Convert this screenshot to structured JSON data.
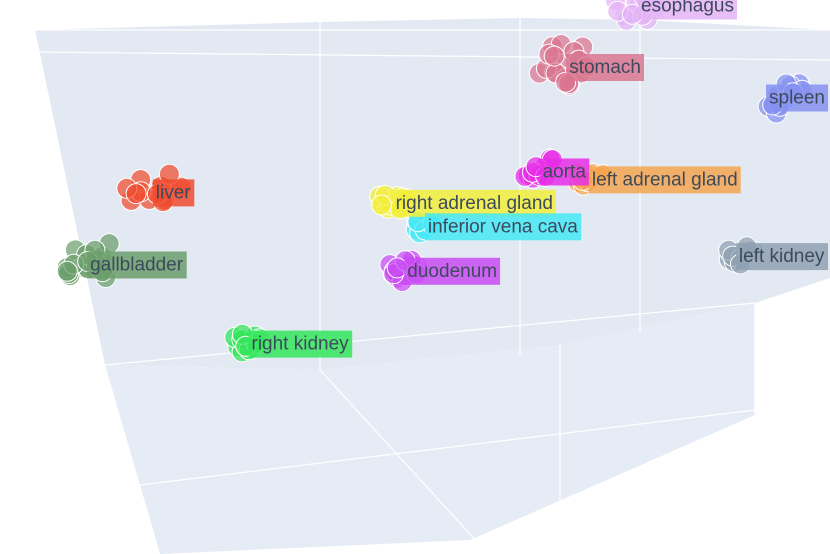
{
  "chart_data": {
    "type": "scatter",
    "projection": "3d",
    "title": "",
    "grid": true,
    "legend": "none",
    "background_color": "#e5ecf6",
    "series": [
      {
        "name": "esophagus",
        "color": "#e3b3f5",
        "x": [
          12.0,
          12.6,
          13.1,
          11.5,
          12.9,
          12.2,
          13.5,
          12.4,
          11.9,
          13.0,
          12.7,
          12.1,
          13.3,
          11.7,
          12.5,
          12.8,
          13.2,
          12.3
        ],
        "y": [
          3.2,
          3.8,
          2.9,
          3.5,
          4.1,
          2.6,
          3.3,
          3.9,
          2.8,
          3.6,
          4.4,
          3.1,
          3.7,
          3.0,
          2.7,
          3.4,
          4.0,
          3.5
        ],
        "z": [
          16.4,
          17.1,
          16.8,
          17.5,
          16.2,
          17.9,
          16.6,
          17.3,
          18.1,
          16.9,
          17.6,
          16.1,
          17.2,
          16.7,
          17.8,
          16.3,
          17.0,
          16.5
        ]
      },
      {
        "name": "stomach",
        "color": "#d9758f",
        "x": [
          8.2,
          9.1,
          9.8,
          8.7,
          10.3,
          9.4,
          8.9,
          10.0,
          9.6,
          8.4,
          10.6,
          9.2,
          8.8,
          9.9,
          9.5,
          10.1,
          8.6,
          9.3,
          9.0,
          10.4
        ],
        "y": [
          1.8,
          2.4,
          1.2,
          2.9,
          1.6,
          2.2,
          1.4,
          2.7,
          1.9,
          2.5,
          1.1,
          2.0,
          2.8,
          1.5,
          2.3,
          1.7,
          2.1,
          2.6,
          1.3,
          2.0
        ],
        "z": [
          13.6,
          14.2,
          12.9,
          13.8,
          14.6,
          13.1,
          14.9,
          13.4,
          12.6,
          14.0,
          13.3,
          15.1,
          13.7,
          14.4,
          12.8,
          13.9,
          14.7,
          13.0,
          14.3,
          13.5
        ]
      },
      {
        "name": "liver",
        "color": "#f04b2e",
        "x": [
          -10.5,
          -9.2,
          -8.8,
          -10.1,
          -9.6,
          -8.3,
          -9.9,
          -10.8,
          -9.0,
          -8.6,
          -9.4,
          -10.3
        ],
        "y": [
          -2.1,
          -1.4,
          -2.6,
          -1.8,
          -2.3,
          -1.1,
          -2.8,
          -1.6,
          -2.0,
          -2.5,
          -1.3,
          -1.9
        ],
        "z": [
          9.6,
          10.3,
          9.1,
          10.8,
          9.4,
          10.1,
          9.8,
          10.5,
          9.2,
          10.6,
          9.9,
          10.0
        ]
      },
      {
        "name": "gallbladder",
        "color": "#6b9e6b",
        "x": [
          -12.4,
          -11.6,
          -12.9,
          -11.2,
          -12.1,
          -13.3,
          -11.8,
          -12.6,
          -11.4,
          -12.2,
          -13.0,
          -11.9,
          -12.7,
          -11.5,
          -12.3,
          -13.1
        ],
        "y": [
          -4.2,
          -3.6,
          -4.8,
          -3.9,
          -4.5,
          -3.4,
          -4.1,
          -5.0,
          -3.7,
          -4.3,
          -4.6,
          -3.8,
          -4.9,
          -4.0,
          -3.5,
          -4.4
        ],
        "z": [
          5.6,
          6.2,
          5.1,
          6.8,
          5.4,
          6.0,
          5.8,
          6.5,
          4.9,
          6.3,
          5.3,
          6.6,
          5.7,
          5.2,
          6.1,
          5.5
        ]
      },
      {
        "name": "spleen",
        "color": "#8590f0",
        "x": [
          18.2,
          19.1,
          18.7,
          19.6,
          18.4,
          19.3,
          18.9,
          19.8,
          18.6,
          19.0,
          19.4,
          18.3
        ],
        "y": [
          6.5,
          7.2,
          6.1,
          6.9,
          7.5,
          6.3,
          7.0,
          6.6,
          7.3,
          6.8,
          6.4,
          7.1
        ],
        "z": [
          10.4,
          11.1,
          10.8,
          11.5,
          10.2,
          11.3,
          10.7,
          11.0,
          10.5,
          11.6,
          10.9,
          10.6
        ]
      },
      {
        "name": "aorta",
        "color": "#e62de6",
        "x": [
          7.6,
          8.3,
          7.9,
          8.6,
          7.3,
          8.1,
          8.8,
          7.7,
          8.4,
          8.0
        ],
        "y": [
          2.1,
          2.6,
          1.8,
          2.4,
          2.9,
          2.2,
          1.9,
          2.7,
          2.3,
          2.0
        ],
        "z": [
          7.8,
          8.3,
          7.5,
          8.6,
          8.0,
          7.7,
          8.4,
          8.1,
          7.6,
          8.2
        ]
      },
      {
        "name": "left adrenal gland",
        "color": "#f5a54d",
        "x": [
          9.8,
          10.4,
          10.1,
          10.7,
          9.6,
          10.3,
          10.9,
          10.0
        ],
        "y": [
          3.1,
          3.6,
          2.8,
          3.3,
          3.9,
          3.0,
          3.5,
          3.2
        ],
        "z": [
          7.1,
          7.6,
          6.8,
          7.3,
          7.9,
          7.0,
          7.4,
          7.2
        ]
      },
      {
        "name": "right adrenal gland",
        "color": "#f2ef3a",
        "x": [
          1.2,
          1.8,
          1.5,
          2.1,
          0.9,
          1.6,
          2.3,
          1.3,
          1.9,
          1.1
        ],
        "y": [
          -0.6,
          -0.1,
          -0.9,
          -0.3,
          0.2,
          -0.7,
          -0.2,
          -0.5,
          0.1,
          -0.4
        ],
        "z": [
          6.9,
          7.4,
          6.6,
          7.2,
          7.7,
          6.8,
          7.1,
          7.5,
          6.7,
          7.0
        ]
      },
      {
        "name": "inferior vena cava",
        "color": "#45e8f5",
        "x": [
          2.6,
          3.1,
          2.8,
          3.4,
          2.5,
          3.0,
          3.3,
          2.7
        ],
        "y": [
          0.4,
          0.9,
          0.2,
          0.7,
          1.1,
          0.5,
          0.8,
          0.3
        ],
        "z": [
          5.4,
          5.9,
          5.1,
          5.7,
          6.1,
          5.3,
          5.6,
          5.8
        ]
      },
      {
        "name": "duodenum",
        "color": "#c94bf2",
        "x": [
          1.8,
          2.5,
          2.1,
          2.9,
          1.5,
          2.3,
          2.7,
          1.9,
          2.6,
          2.2,
          1.7,
          2.4,
          2.8,
          2.0
        ],
        "y": [
          -1.2,
          -0.6,
          -1.5,
          -0.9,
          -0.4,
          -1.1,
          -0.7,
          -1.4,
          -0.8,
          -1.0,
          -0.5,
          -1.3,
          -0.6,
          -1.2
        ],
        "z": [
          2.6,
          3.1,
          2.2,
          2.9,
          3.4,
          2.4,
          3.0,
          2.7,
          3.3,
          2.1,
          2.8,
          3.2,
          2.5,
          2.9
        ]
      },
      {
        "name": "left kidney",
        "color": "#8fa1b3",
        "x": [
          16.1,
          16.8,
          16.4,
          17.2,
          15.9,
          16.6,
          17.0,
          16.3,
          16.9,
          16.5
        ],
        "y": [
          7.8,
          8.4,
          7.5,
          8.1,
          8.7,
          7.9,
          8.3,
          7.6,
          8.0,
          8.5
        ],
        "z": [
          2.2,
          2.7,
          1.9,
          2.5,
          3.0,
          2.1,
          2.6,
          2.3,
          2.8,
          2.0
        ]
      },
      {
        "name": "right kidney",
        "color": "#33e55a",
        "x": [
          -4.6,
          -3.9,
          -4.3,
          -3.6,
          -4.9,
          -4.1,
          -3.7,
          -4.5,
          -4.0,
          -3.8,
          -4.4,
          -4.2
        ],
        "y": [
          -6.4,
          -5.8,
          -6.9,
          -6.1,
          -5.6,
          -6.6,
          -6.2,
          -5.9,
          -6.7,
          -6.0,
          -6.3,
          -6.5
        ],
        "z": [
          -1.4,
          -0.8,
          -1.9,
          -1.1,
          -0.6,
          -1.6,
          -1.2,
          -0.9,
          -1.8,
          -1.3,
          -0.7,
          -1.5
        ]
      }
    ]
  }
}
